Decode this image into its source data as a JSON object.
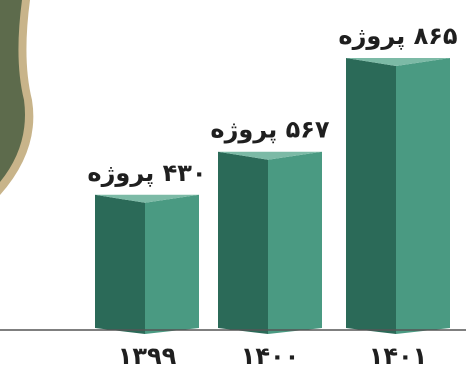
{
  "chart_data": {
    "type": "bar",
    "categories": [
      "۱۳۹۹",
      "۱۴۰۰",
      "۱۴۰۱"
    ],
    "values": [
      430,
      567,
      865
    ],
    "value_labels": [
      "۴۳۰ پروژه",
      "۵۶۷ پروژه",
      "۸۶۵ پروژه"
    ],
    "unit": "پروژه",
    "title": "",
    "xlabel": "",
    "ylabel": "",
    "ylim": [
      0,
      1000
    ],
    "grid": false,
    "legend": "none"
  },
  "colors": {
    "bar_front": "#4a9a82",
    "bar_side": "#2b6a58",
    "bar_top": "#7cbaa6",
    "baseline": "#555555",
    "photo_frame": "#c8b48a",
    "photo_fill": "#5d6b4c"
  }
}
